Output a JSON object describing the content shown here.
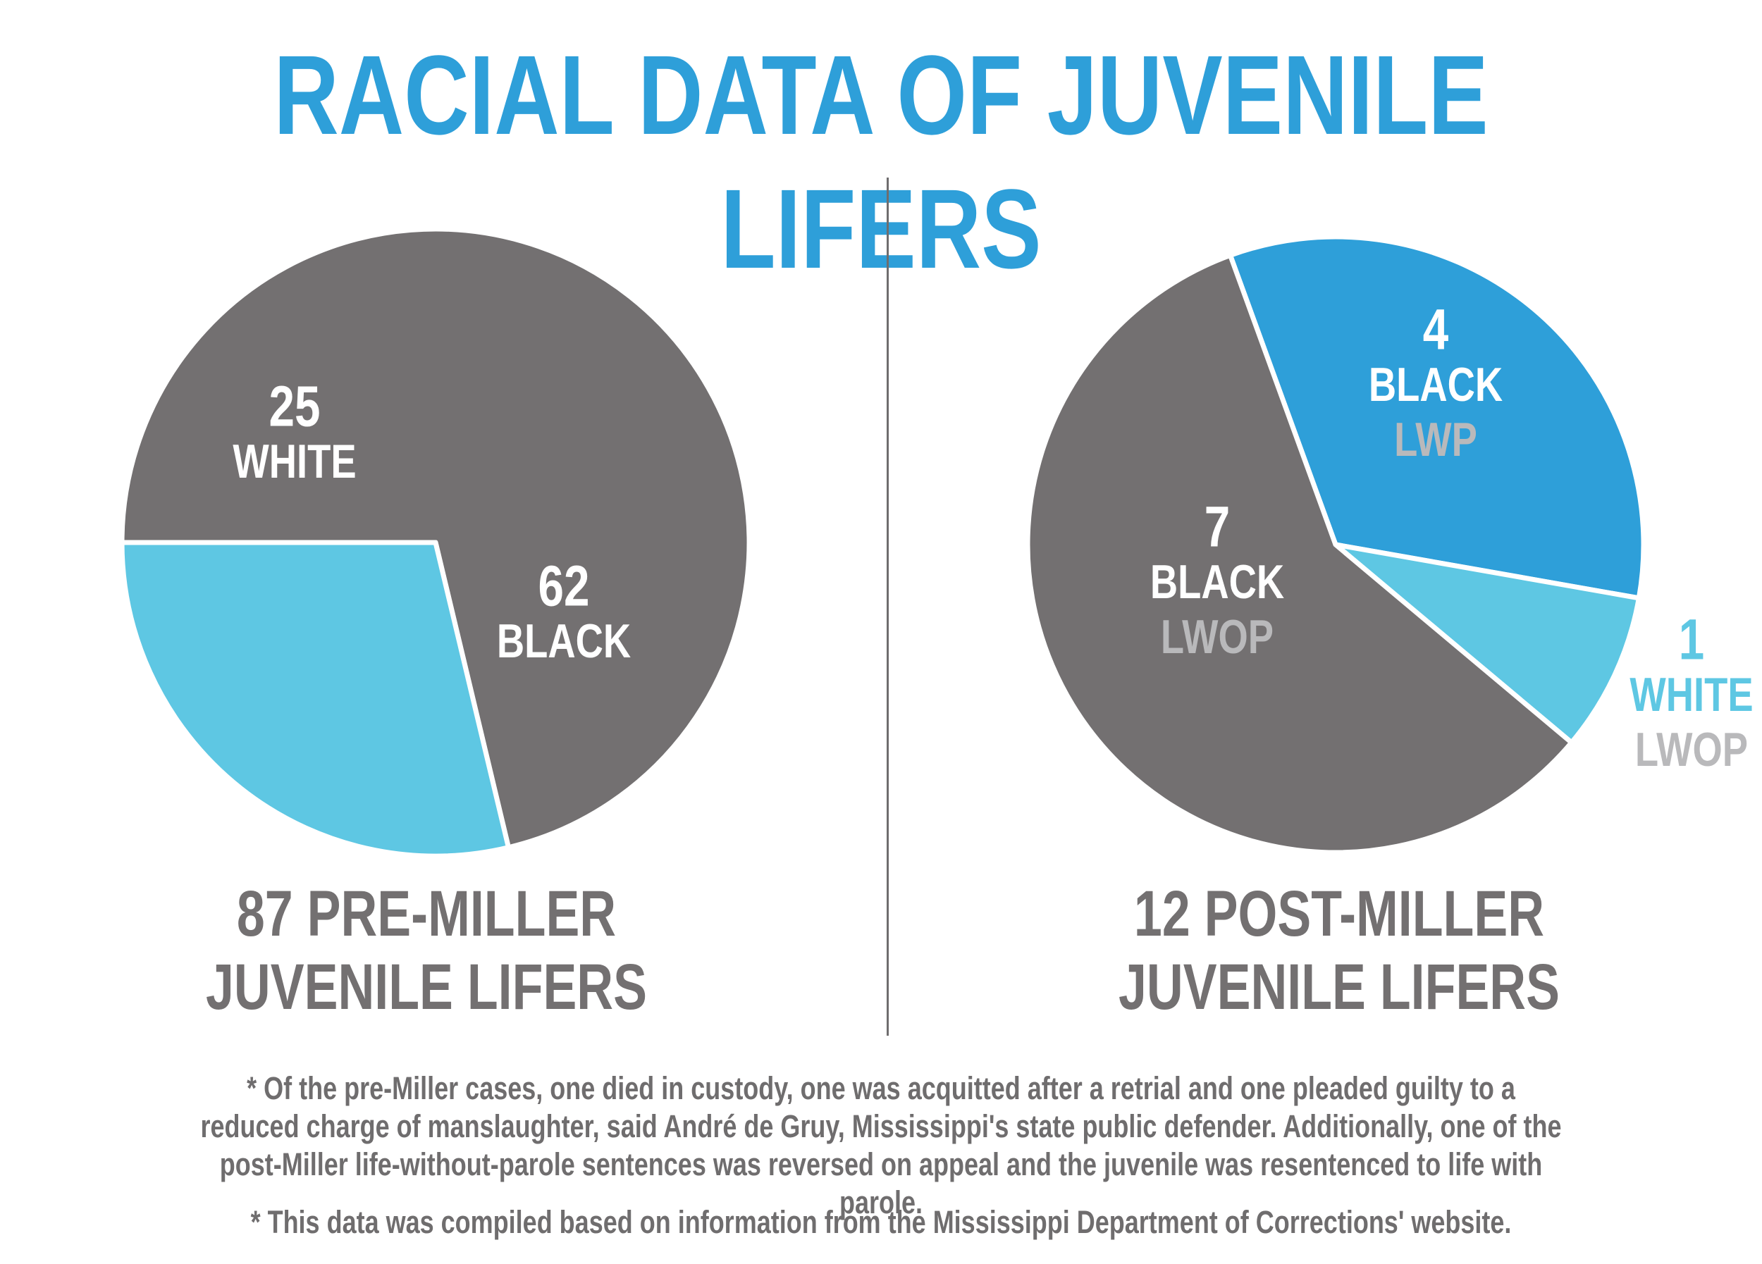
{
  "title": "RACIAL DATA OF JUVENILE LIFERS",
  "colors": {
    "title": "#2e9fd9",
    "black": "#737071",
    "white": "#5ec7e3",
    "black_lwp": "#2e9fd9",
    "label_white": "#ffffff",
    "label_muted": "#b9b9bb",
    "subtitle": "#737071"
  },
  "left_chart": {
    "subtitle_line1": "87 PRE-MILLER",
    "subtitle_line2": "JUVENILE LIFERS"
  },
  "right_chart": {
    "subtitle_line1": "12 POST-MILLER",
    "subtitle_line2": "JUVENILE LIFERS"
  },
  "footnotes": {
    "note1": "* Of the pre-Miller cases, one died in custody, one was acquitted after a retrial and one pleaded guilty to a reduced charge of manslaughter, said André de Gruy, Mississippi's state public defender. Additionally, one of the post-Miller life-without-parole sentences was reversed on appeal and the juvenile was resentenced to life with parole.",
    "note2": "* This data was compiled based on information from the Mississippi Department of Corrections' website."
  },
  "chart_data": [
    {
      "type": "pie",
      "title": "87 PRE-MILLER JUVENILE LIFERS",
      "slices": [
        {
          "count": "62",
          "race": "BLACK",
          "sentence": "",
          "value": 62,
          "color": "#737071"
        },
        {
          "count": "25",
          "race": "WHITE",
          "sentence": "",
          "value": 25,
          "color": "#5ec7e3"
        }
      ]
    },
    {
      "type": "pie",
      "title": "12 POST-MILLER JUVENILE LIFERS",
      "slices": [
        {
          "count": "4",
          "race": "BLACK",
          "sentence": "LWP",
          "value": 4,
          "color": "#2e9fd9"
        },
        {
          "count": "1",
          "race": "WHITE",
          "sentence": "LWOP",
          "value": 1,
          "color": "#5ec7e3"
        },
        {
          "count": "7",
          "race": "BLACK",
          "sentence": "LWOP",
          "value": 7,
          "color": "#737071"
        }
      ]
    }
  ]
}
